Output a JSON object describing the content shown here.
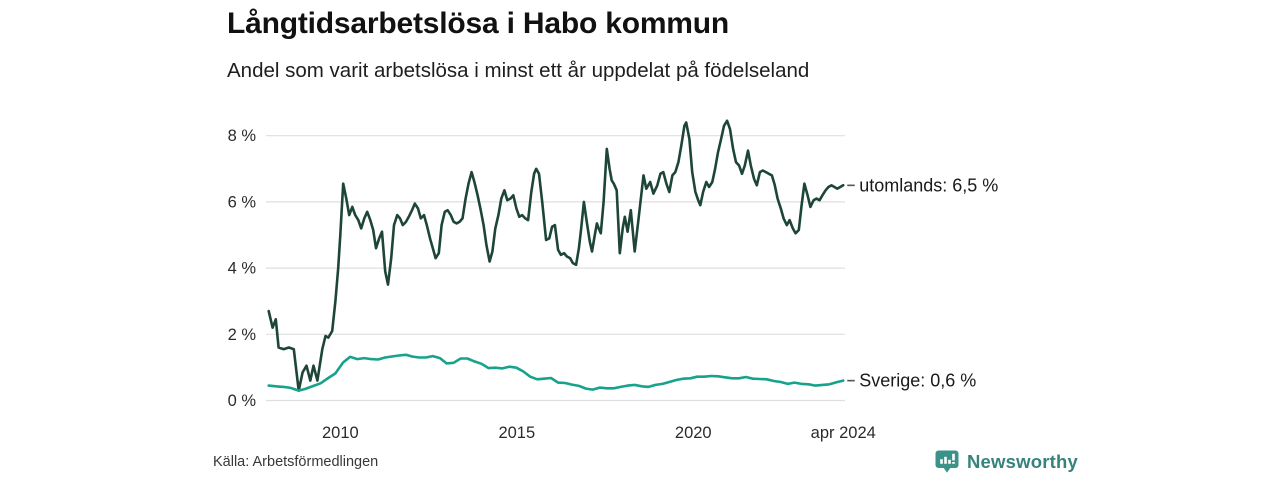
{
  "footer": {
    "source": "Källa: Arbetsförmedlingen",
    "brand_name": "Newsworthy"
  },
  "colors": {
    "utomlands_line": "#1d4637",
    "sverige_line": "#17a28c",
    "grid": "#dfdfdf",
    "axis_text": "#2b2b2b",
    "annotation_text": "#1a1a1a",
    "annotation_dash": "#555555",
    "brand_teal": "#35837b",
    "brand_icon_teal": "#3b9289",
    "background": "#ffffff"
  },
  "chart_data": {
    "type": "line",
    "title": "Långtidsarbetslösa i Habo kommun",
    "subtitle": "Andel som varit arbetslösa i minst ett år uppdelat på födelseland",
    "xlabel": "",
    "ylabel": "",
    "grid": "horizontal",
    "legend_position": "end-of-line labels",
    "xlim": [
      2007.95,
      2024.3
    ],
    "ylim": [
      0,
      8.6
    ],
    "yticks": [
      {
        "value": 0,
        "label": "0 %"
      },
      {
        "value": 2,
        "label": "2 %"
      },
      {
        "value": 4,
        "label": "4 %"
      },
      {
        "value": 6,
        "label": "6 %"
      },
      {
        "value": 8,
        "label": "8 %"
      }
    ],
    "xticks": [
      {
        "value": 2010,
        "label": "2010"
      },
      {
        "value": 2015,
        "label": "2015"
      },
      {
        "value": 2020,
        "label": "2020"
      },
      {
        "value": 2024.25,
        "label": "apr 2024"
      }
    ],
    "series": [
      {
        "name": "utomlands",
        "end_label": "utomlands: 6,5 %",
        "latest_value": "6,5 %",
        "color": "#1d4637",
        "points": [
          [
            2007.97,
            2.7
          ],
          [
            2008.08,
            2.2
          ],
          [
            2008.17,
            2.45
          ],
          [
            2008.25,
            1.6
          ],
          [
            2008.39,
            1.55
          ],
          [
            2008.54,
            1.6
          ],
          [
            2008.68,
            1.55
          ],
          [
            2008.82,
            0.3
          ],
          [
            2008.93,
            0.85
          ],
          [
            2009.04,
            1.05
          ],
          [
            2009.15,
            0.6
          ],
          [
            2009.24,
            1.05
          ],
          [
            2009.35,
            0.6
          ],
          [
            2009.49,
            1.55
          ],
          [
            2009.58,
            1.95
          ],
          [
            2009.66,
            1.9
          ],
          [
            2009.77,
            2.1
          ],
          [
            2009.86,
            3.0
          ],
          [
            2009.94,
            4.0
          ],
          [
            2010.0,
            5.0
          ],
          [
            2010.08,
            6.55
          ],
          [
            2010.17,
            6.1
          ],
          [
            2010.25,
            5.6
          ],
          [
            2010.34,
            5.85
          ],
          [
            2010.42,
            5.6
          ],
          [
            2010.51,
            5.45
          ],
          [
            2010.59,
            5.2
          ],
          [
            2010.68,
            5.5
          ],
          [
            2010.76,
            5.7
          ],
          [
            2010.85,
            5.45
          ],
          [
            2010.93,
            5.15
          ],
          [
            2011.01,
            4.6
          ],
          [
            2011.1,
            4.9
          ],
          [
            2011.18,
            5.1
          ],
          [
            2011.27,
            3.9
          ],
          [
            2011.35,
            3.5
          ],
          [
            2011.44,
            4.3
          ],
          [
            2011.52,
            5.3
          ],
          [
            2011.61,
            5.6
          ],
          [
            2011.69,
            5.5
          ],
          [
            2011.77,
            5.3
          ],
          [
            2011.86,
            5.4
          ],
          [
            2011.94,
            5.55
          ],
          [
            2012.03,
            5.75
          ],
          [
            2012.11,
            5.95
          ],
          [
            2012.2,
            5.8
          ],
          [
            2012.28,
            5.5
          ],
          [
            2012.37,
            5.6
          ],
          [
            2012.45,
            5.3
          ],
          [
            2012.54,
            4.9
          ],
          [
            2012.62,
            4.6
          ],
          [
            2012.7,
            4.3
          ],
          [
            2012.79,
            4.45
          ],
          [
            2012.87,
            5.3
          ],
          [
            2012.96,
            5.7
          ],
          [
            2013.04,
            5.75
          ],
          [
            2013.13,
            5.6
          ],
          [
            2013.21,
            5.4
          ],
          [
            2013.3,
            5.35
          ],
          [
            2013.38,
            5.4
          ],
          [
            2013.46,
            5.5
          ],
          [
            2013.55,
            6.1
          ],
          [
            2013.63,
            6.55
          ],
          [
            2013.72,
            6.9
          ],
          [
            2013.8,
            6.6
          ],
          [
            2013.89,
            6.2
          ],
          [
            2013.97,
            5.8
          ],
          [
            2014.06,
            5.3
          ],
          [
            2014.14,
            4.7
          ],
          [
            2014.23,
            4.2
          ],
          [
            2014.31,
            4.5
          ],
          [
            2014.39,
            5.2
          ],
          [
            2014.48,
            5.6
          ],
          [
            2014.56,
            6.1
          ],
          [
            2014.65,
            6.35
          ],
          [
            2014.73,
            6.05
          ],
          [
            2014.82,
            6.1
          ],
          [
            2014.9,
            6.2
          ],
          [
            2014.99,
            5.8
          ],
          [
            2015.07,
            5.55
          ],
          [
            2015.15,
            5.6
          ],
          [
            2015.24,
            5.5
          ],
          [
            2015.32,
            5.45
          ],
          [
            2015.41,
            6.3
          ],
          [
            2015.49,
            6.85
          ],
          [
            2015.55,
            7.0
          ],
          [
            2015.63,
            6.85
          ],
          [
            2015.72,
            6.0
          ],
          [
            2015.83,
            4.85
          ],
          [
            2015.92,
            4.9
          ],
          [
            2016.0,
            5.25
          ],
          [
            2016.08,
            5.3
          ],
          [
            2016.17,
            4.55
          ],
          [
            2016.25,
            4.4
          ],
          [
            2016.34,
            4.45
          ],
          [
            2016.42,
            4.35
          ],
          [
            2016.51,
            4.3
          ],
          [
            2016.59,
            4.15
          ],
          [
            2016.68,
            4.1
          ],
          [
            2016.76,
            4.6
          ],
          [
            2016.82,
            5.15
          ],
          [
            2016.9,
            6.0
          ],
          [
            2016.99,
            5.35
          ],
          [
            2017.07,
            4.8
          ],
          [
            2017.13,
            4.5
          ],
          [
            2017.21,
            5.0
          ],
          [
            2017.27,
            5.35
          ],
          [
            2017.32,
            5.2
          ],
          [
            2017.38,
            5.05
          ],
          [
            2017.46,
            6.0
          ],
          [
            2017.55,
            7.6
          ],
          [
            2017.63,
            7.0
          ],
          [
            2017.69,
            6.65
          ],
          [
            2017.75,
            6.55
          ],
          [
            2017.83,
            6.35
          ],
          [
            2017.92,
            4.45
          ],
          [
            2018.0,
            5.2
          ],
          [
            2018.06,
            5.55
          ],
          [
            2018.14,
            5.1
          ],
          [
            2018.23,
            5.75
          ],
          [
            2018.34,
            4.5
          ],
          [
            2018.45,
            5.5
          ],
          [
            2018.59,
            6.8
          ],
          [
            2018.67,
            6.4
          ],
          [
            2018.78,
            6.6
          ],
          [
            2018.87,
            6.25
          ],
          [
            2018.98,
            6.5
          ],
          [
            2019.07,
            6.85
          ],
          [
            2019.15,
            6.9
          ],
          [
            2019.24,
            6.55
          ],
          [
            2019.32,
            6.3
          ],
          [
            2019.41,
            6.8
          ],
          [
            2019.49,
            6.9
          ],
          [
            2019.58,
            7.2
          ],
          [
            2019.66,
            7.7
          ],
          [
            2019.75,
            8.3
          ],
          [
            2019.8,
            8.4
          ],
          [
            2019.89,
            7.9
          ],
          [
            2019.97,
            6.9
          ],
          [
            2020.06,
            6.3
          ],
          [
            2020.14,
            6.05
          ],
          [
            2020.2,
            5.9
          ],
          [
            2020.28,
            6.3
          ],
          [
            2020.37,
            6.6
          ],
          [
            2020.45,
            6.45
          ],
          [
            2020.54,
            6.6
          ],
          [
            2020.62,
            7.0
          ],
          [
            2020.7,
            7.5
          ],
          [
            2020.79,
            7.9
          ],
          [
            2020.87,
            8.3
          ],
          [
            2020.96,
            8.45
          ],
          [
            2021.04,
            8.2
          ],
          [
            2021.13,
            7.6
          ],
          [
            2021.21,
            7.2
          ],
          [
            2021.3,
            7.1
          ],
          [
            2021.38,
            6.85
          ],
          [
            2021.46,
            7.1
          ],
          [
            2021.55,
            7.55
          ],
          [
            2021.63,
            7.1
          ],
          [
            2021.72,
            6.7
          ],
          [
            2021.8,
            6.5
          ],
          [
            2021.89,
            6.9
          ],
          [
            2021.97,
            6.95
          ],
          [
            2022.06,
            6.9
          ],
          [
            2022.14,
            6.85
          ],
          [
            2022.23,
            6.8
          ],
          [
            2022.31,
            6.5
          ],
          [
            2022.39,
            6.1
          ],
          [
            2022.48,
            5.8
          ],
          [
            2022.56,
            5.5
          ],
          [
            2022.65,
            5.3
          ],
          [
            2022.73,
            5.45
          ],
          [
            2022.82,
            5.2
          ],
          [
            2022.9,
            5.05
          ],
          [
            2022.99,
            5.15
          ],
          [
            2023.07,
            5.9
          ],
          [
            2023.15,
            6.55
          ],
          [
            2023.24,
            6.2
          ],
          [
            2023.32,
            5.85
          ],
          [
            2023.41,
            6.05
          ],
          [
            2023.49,
            6.1
          ],
          [
            2023.58,
            6.05
          ],
          [
            2023.66,
            6.2
          ],
          [
            2023.75,
            6.35
          ],
          [
            2023.83,
            6.45
          ],
          [
            2023.92,
            6.5
          ],
          [
            2024.0,
            6.45
          ],
          [
            2024.08,
            6.4
          ],
          [
            2024.25,
            6.5
          ]
        ]
      },
      {
        "name": "Sverige",
        "end_label": "Sverige: 0,6 %",
        "latest_value": "0,6 %",
        "color": "#17a28c",
        "points": [
          [
            2007.97,
            0.45
          ],
          [
            2008.17,
            0.43
          ],
          [
            2008.39,
            0.41
          ],
          [
            2008.59,
            0.38
          ],
          [
            2008.82,
            0.3
          ],
          [
            2009.01,
            0.35
          ],
          [
            2009.24,
            0.44
          ],
          [
            2009.44,
            0.52
          ],
          [
            2009.66,
            0.68
          ],
          [
            2009.86,
            0.82
          ],
          [
            2010.08,
            1.15
          ],
          [
            2010.28,
            1.32
          ],
          [
            2010.48,
            1.25
          ],
          [
            2010.68,
            1.28
          ],
          [
            2010.87,
            1.25
          ],
          [
            2011.07,
            1.24
          ],
          [
            2011.27,
            1.3
          ],
          [
            2011.46,
            1.33
          ],
          [
            2011.66,
            1.36
          ],
          [
            2011.86,
            1.38
          ],
          [
            2012.03,
            1.33
          ],
          [
            2012.23,
            1.3
          ],
          [
            2012.42,
            1.3
          ],
          [
            2012.62,
            1.34
          ],
          [
            2012.82,
            1.28
          ],
          [
            2013.01,
            1.12
          ],
          [
            2013.21,
            1.14
          ],
          [
            2013.41,
            1.27
          ],
          [
            2013.6,
            1.27
          ],
          [
            2013.8,
            1.18
          ],
          [
            2014.0,
            1.11
          ],
          [
            2014.2,
            0.98
          ],
          [
            2014.39,
            0.99
          ],
          [
            2014.59,
            0.97
          ],
          [
            2014.79,
            1.02
          ],
          [
            2014.99,
            0.99
          ],
          [
            2015.18,
            0.88
          ],
          [
            2015.38,
            0.72
          ],
          [
            2015.58,
            0.64
          ],
          [
            2015.77,
            0.66
          ],
          [
            2015.97,
            0.68
          ],
          [
            2016.17,
            0.54
          ],
          [
            2016.37,
            0.53
          ],
          [
            2016.56,
            0.48
          ],
          [
            2016.76,
            0.44
          ],
          [
            2016.96,
            0.36
          ],
          [
            2017.15,
            0.33
          ],
          [
            2017.35,
            0.39
          ],
          [
            2017.55,
            0.37
          ],
          [
            2017.75,
            0.37
          ],
          [
            2017.94,
            0.41
          ],
          [
            2018.14,
            0.45
          ],
          [
            2018.34,
            0.47
          ],
          [
            2018.54,
            0.43
          ],
          [
            2018.73,
            0.41
          ],
          [
            2018.93,
            0.47
          ],
          [
            2019.13,
            0.5
          ],
          [
            2019.32,
            0.56
          ],
          [
            2019.52,
            0.62
          ],
          [
            2019.72,
            0.66
          ],
          [
            2019.92,
            0.67
          ],
          [
            2020.11,
            0.72
          ],
          [
            2020.31,
            0.72
          ],
          [
            2020.51,
            0.74
          ],
          [
            2020.7,
            0.73
          ],
          [
            2020.9,
            0.7
          ],
          [
            2021.1,
            0.67
          ],
          [
            2021.3,
            0.67
          ],
          [
            2021.49,
            0.71
          ],
          [
            2021.69,
            0.66
          ],
          [
            2021.89,
            0.65
          ],
          [
            2022.08,
            0.64
          ],
          [
            2022.28,
            0.59
          ],
          [
            2022.48,
            0.56
          ],
          [
            2022.68,
            0.5
          ],
          [
            2022.87,
            0.54
          ],
          [
            2023.07,
            0.5
          ],
          [
            2023.27,
            0.49
          ],
          [
            2023.46,
            0.45
          ],
          [
            2023.66,
            0.47
          ],
          [
            2023.86,
            0.49
          ],
          [
            2024.06,
            0.55
          ],
          [
            2024.25,
            0.6
          ]
        ]
      }
    ]
  }
}
